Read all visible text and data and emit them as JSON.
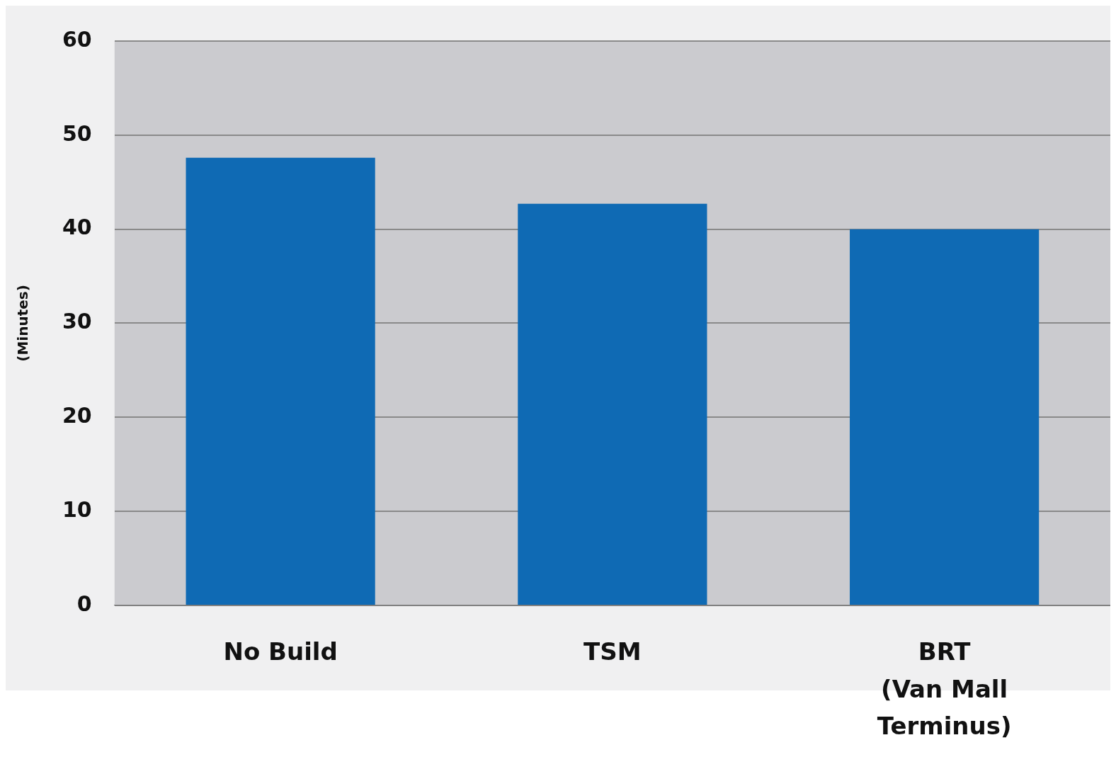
{
  "chart_data": {
    "type": "bar",
    "ylabel": "(Minutes)",
    "categories": [
      "No Build",
      "TSM",
      "BRT\n(Van Mall\nTerminus)"
    ],
    "values": [
      47.6,
      42.7,
      40
    ],
    "color": "#0f6ab4",
    "ylim": [
      0,
      60
    ],
    "yticks": [
      0,
      10,
      20,
      30,
      40,
      50,
      60
    ],
    "grid": "y",
    "legend": false
  }
}
